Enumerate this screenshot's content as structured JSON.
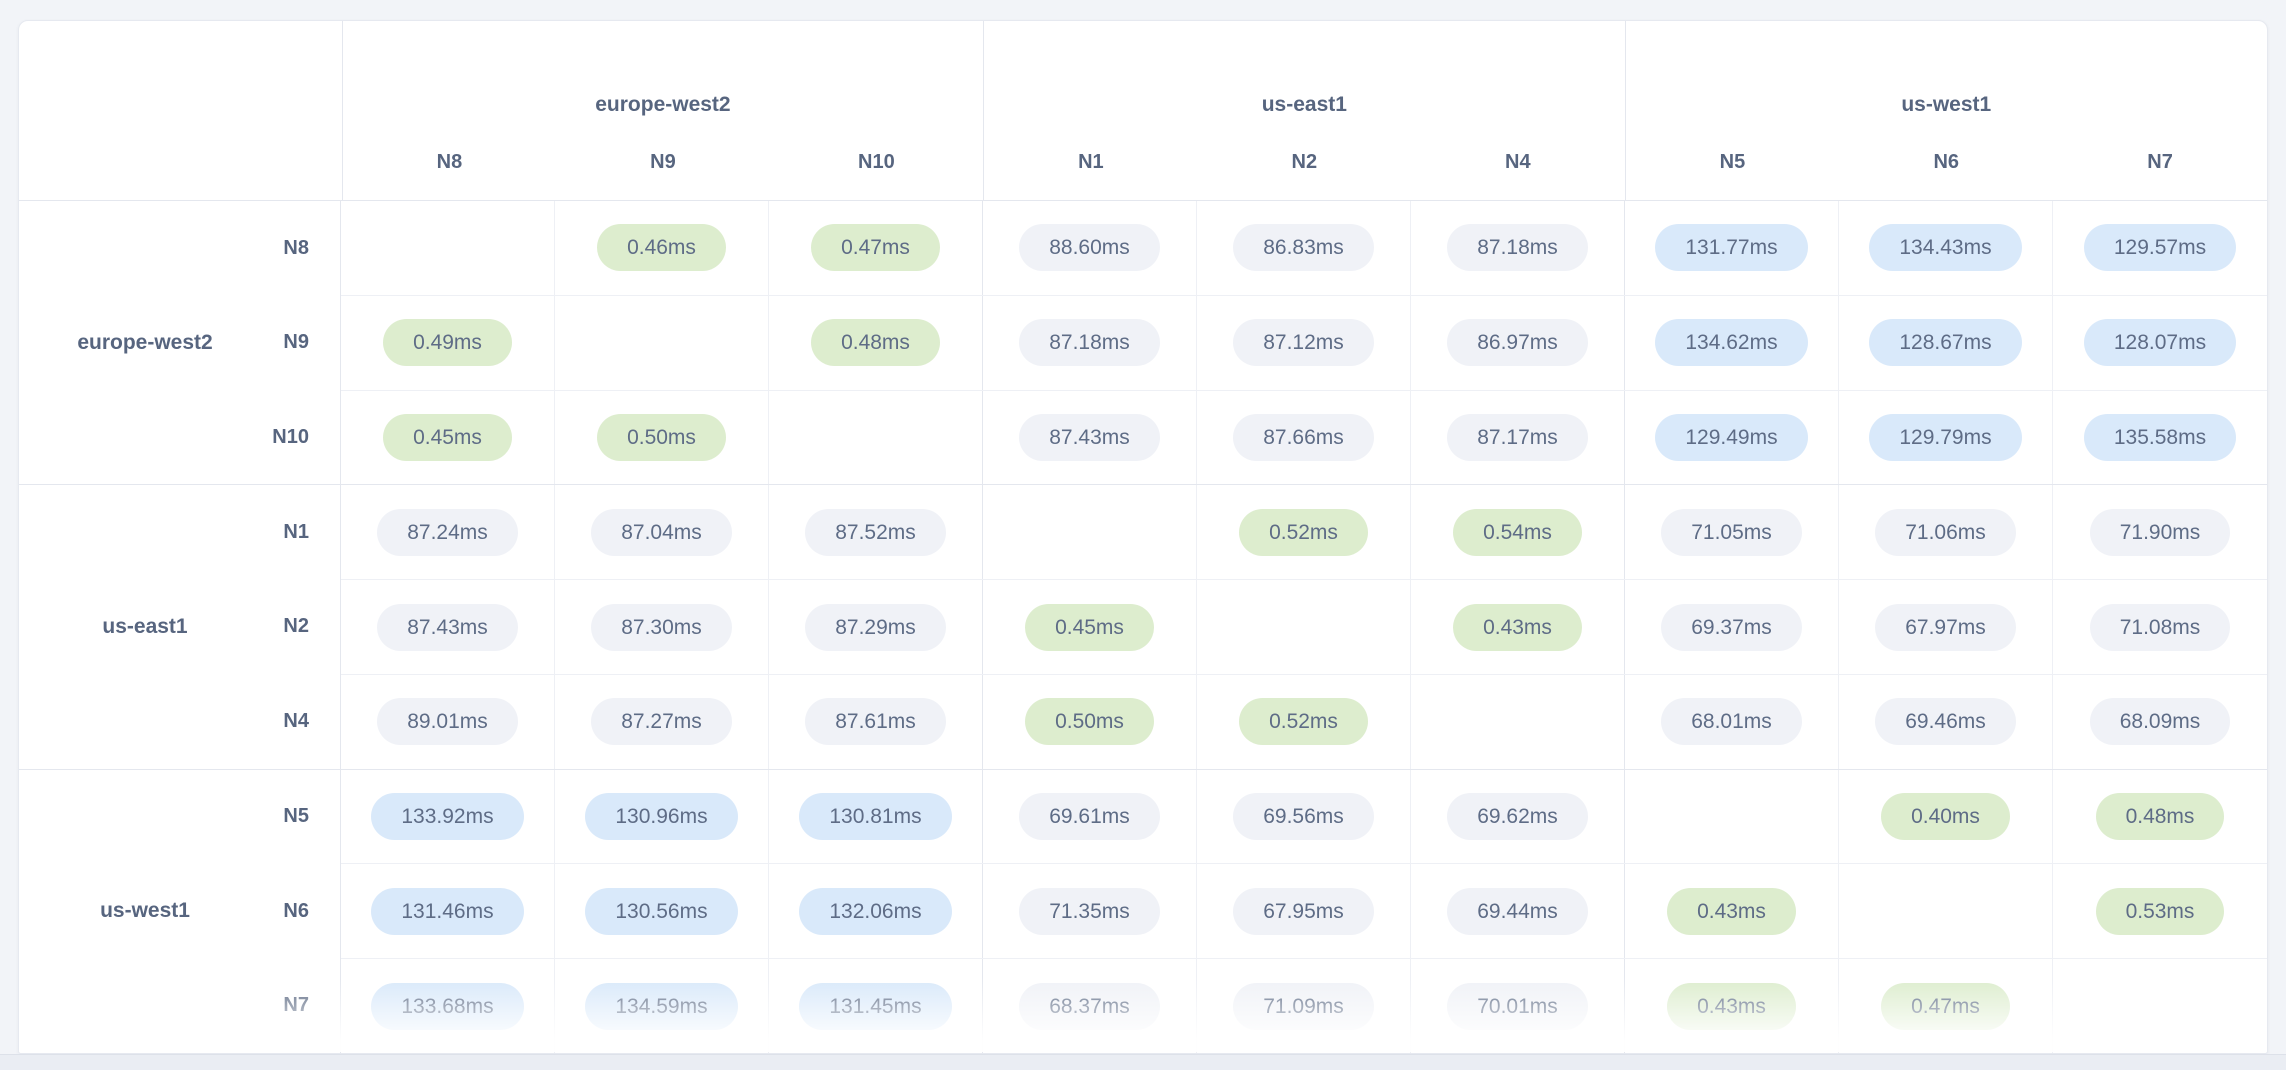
{
  "unit_suffix": "ms",
  "colors": {
    "page_background": "#f2f4f8",
    "card_background": "#ffffff",
    "group_border": "#e4e7ee",
    "cell_border": "#eef0f5",
    "label_text": "#57657f",
    "value_text": "#5e6c86",
    "pill_low_green": "#ddedce",
    "pill_mid_gray": "#f0f2f7",
    "pill_high_blue": "#d9e9fa"
  },
  "chart_data": {
    "type": "heatmap",
    "description": "Node-to-node round-trip latency matrix grouped by region",
    "unit": "ms",
    "column_groups": [
      {
        "region": "europe-west2",
        "nodes": [
          "N8",
          "N9",
          "N10"
        ]
      },
      {
        "region": "us-east1",
        "nodes": [
          "N1",
          "N2",
          "N4"
        ]
      },
      {
        "region": "us-west1",
        "nodes": [
          "N5",
          "N6",
          "N7"
        ]
      }
    ],
    "row_groups": [
      {
        "region": "europe-west2",
        "rows": [
          {
            "node": "N8",
            "values_ms": [
              null,
              0.46,
              0.47,
              88.6,
              86.83,
              87.18,
              131.77,
              134.43,
              129.57
            ]
          },
          {
            "node": "N9",
            "values_ms": [
              0.49,
              null,
              0.48,
              87.18,
              87.12,
              86.97,
              134.62,
              128.67,
              128.07
            ]
          },
          {
            "node": "N10",
            "values_ms": [
              0.45,
              0.5,
              null,
              87.43,
              87.66,
              87.17,
              129.49,
              129.79,
              135.58
            ]
          }
        ]
      },
      {
        "region": "us-east1",
        "rows": [
          {
            "node": "N1",
            "values_ms": [
              87.24,
              87.04,
              87.52,
              null,
              0.52,
              0.54,
              71.05,
              71.06,
              71.9
            ]
          },
          {
            "node": "N2",
            "values_ms": [
              87.43,
              87.3,
              87.29,
              0.45,
              null,
              0.43,
              69.37,
              67.97,
              71.08
            ]
          },
          {
            "node": "N4",
            "values_ms": [
              89.01,
              87.27,
              87.61,
              0.5,
              0.52,
              null,
              68.01,
              69.46,
              68.09
            ]
          }
        ]
      },
      {
        "region": "us-west1",
        "rows": [
          {
            "node": "N5",
            "values_ms": [
              133.92,
              130.96,
              130.81,
              69.61,
              69.56,
              69.62,
              null,
              0.4,
              0.48
            ]
          },
          {
            "node": "N6",
            "values_ms": [
              131.46,
              130.56,
              132.06,
              71.35,
              67.95,
              69.44,
              0.43,
              null,
              0.53
            ]
          },
          {
            "node": "N7",
            "values_ms": [
              133.68,
              134.59,
              131.45,
              68.37,
              71.09,
              70.01,
              0.43,
              0.47,
              null
            ]
          }
        ]
      }
    ],
    "color_thresholds": {
      "green_below_ms": 1,
      "gray_below_ms": 100,
      "blue_at_or_above_ms": 100
    },
    "legend_position": "none",
    "grid": true
  }
}
